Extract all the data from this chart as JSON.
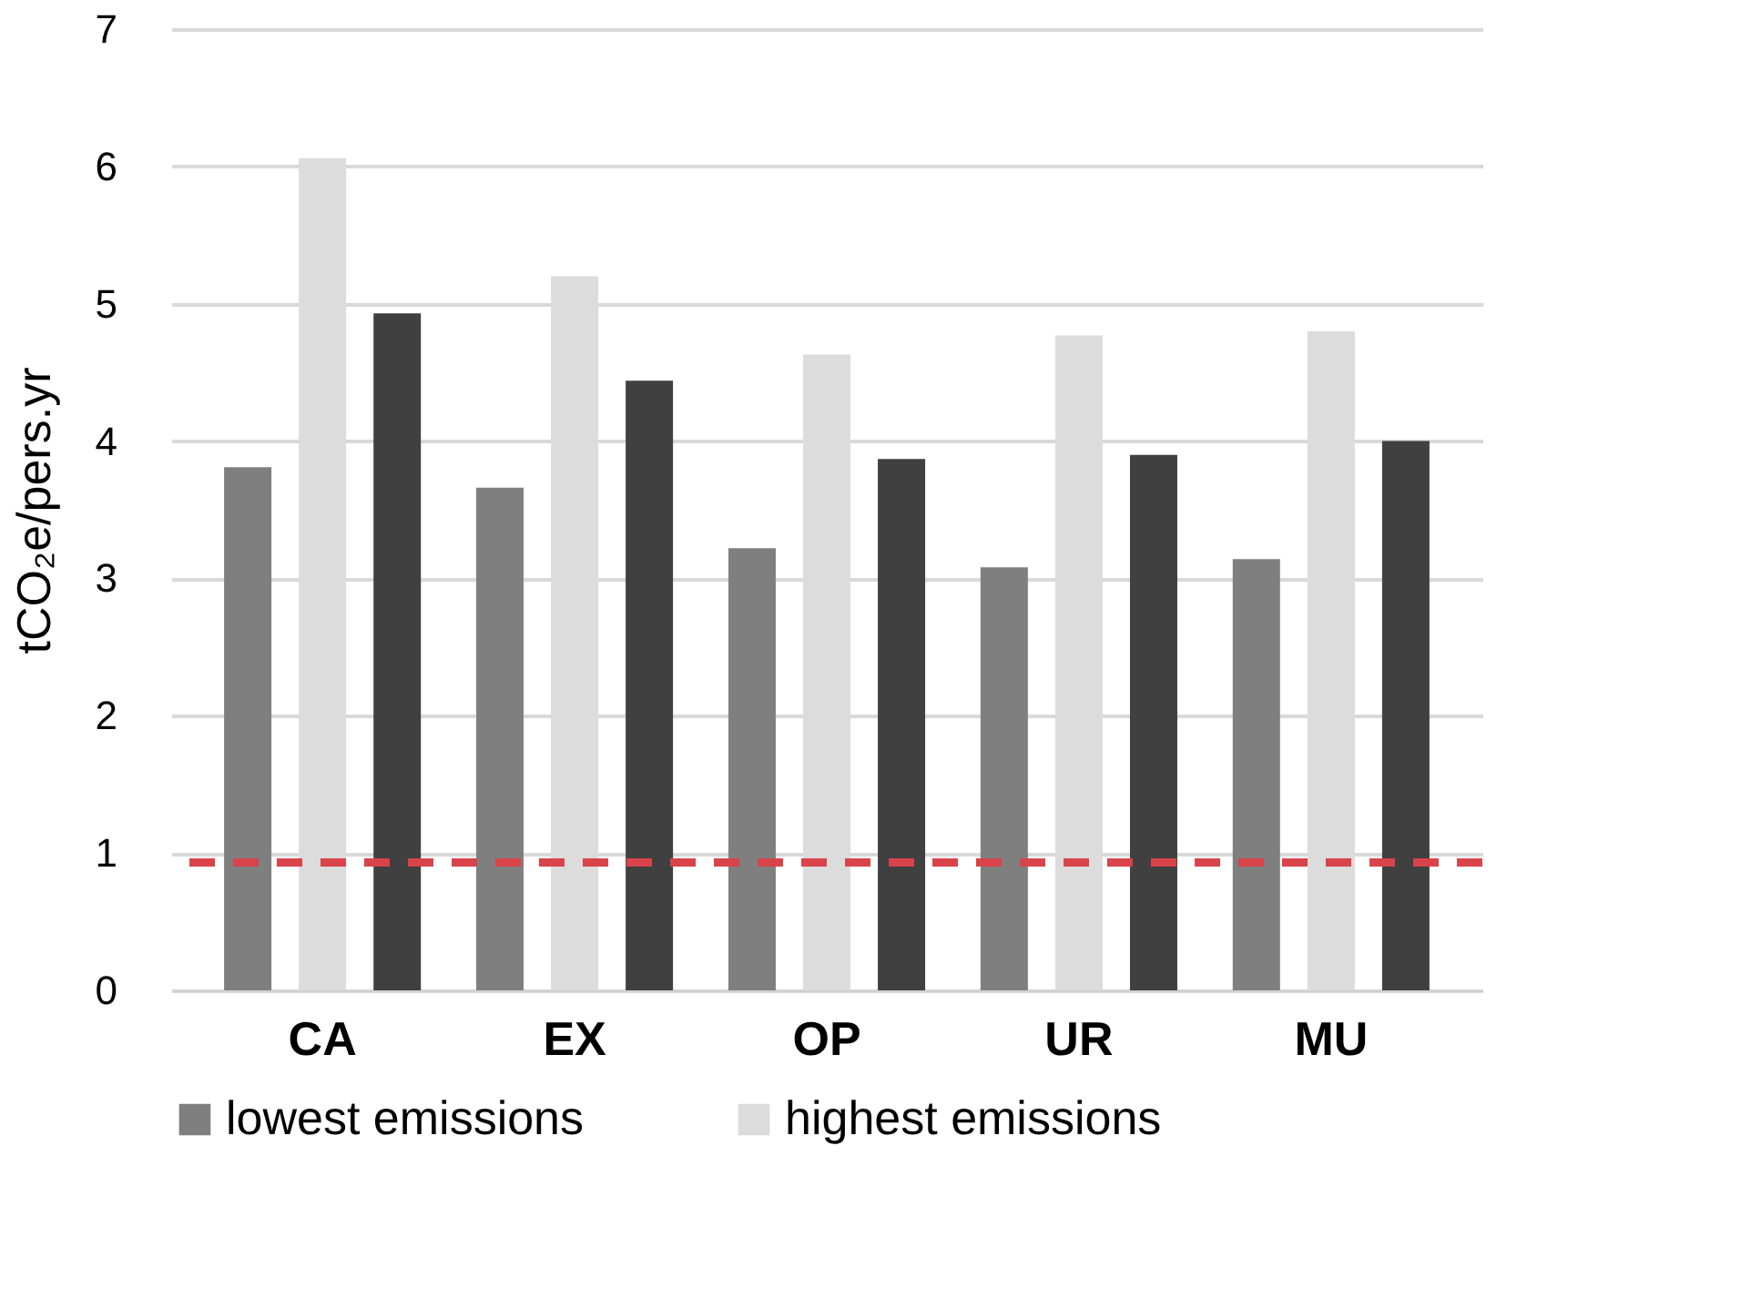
{
  "chart_data": {
    "type": "bar",
    "ylabel": "tCO₂e/pers.yr",
    "categories": [
      "CA",
      "EX",
      "OP",
      "UR",
      "MU"
    ],
    "series": [
      {
        "name": "lowest emissions",
        "color": "#7f7f7f",
        "values": [
          3.81,
          3.66,
          3.22,
          3.08,
          3.14
        ]
      },
      {
        "name": "highest emissions",
        "color": "#dcdcdc",
        "values": [
          6.06,
          5.2,
          4.63,
          4.77,
          4.8
        ]
      },
      {
        "color": "#404040",
        "values": [
          4.93,
          4.44,
          3.87,
          3.9,
          4.0
        ]
      }
    ],
    "ylim": [
      0,
      7
    ],
    "yticks": [
      0,
      1,
      2,
      3,
      4,
      5,
      6,
      7
    ],
    "grid": "y",
    "legend": "bottom",
    "ref_lines": [
      {
        "axis": "y",
        "value": 0.93,
        "color": "#d9434a",
        "line_style": "dashed"
      }
    ]
  }
}
